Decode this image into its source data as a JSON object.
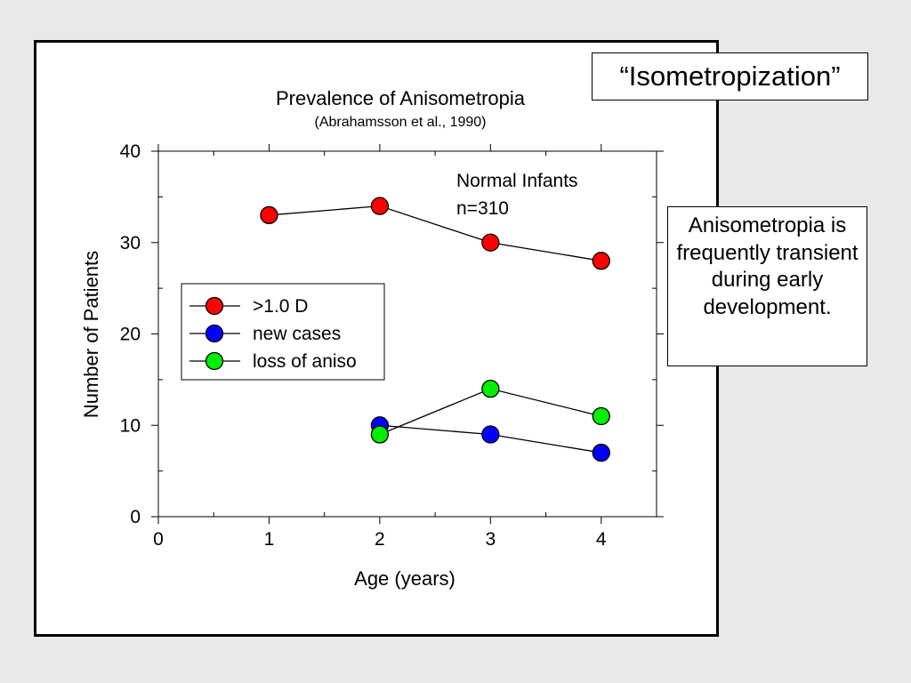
{
  "title_box": {
    "text": "“Isometropization”"
  },
  "note_box": {
    "text": "Anisometropia is frequently transient during early development."
  },
  "chart_data": {
    "type": "line",
    "title": "Prevalence of Anisometropia",
    "subtitle": "(Abrahamsson et al., 1990)",
    "xlabel": "Age (years)",
    "ylabel": "Number of Patients",
    "xlim": [
      0,
      4.5
    ],
    "ylim": [
      0,
      40
    ],
    "xticks": [
      0,
      1,
      2,
      3,
      4
    ],
    "yticks": [
      0,
      10,
      20,
      30,
      40
    ],
    "grid": false,
    "legend_position": "center-left",
    "annotation": {
      "line1": "Normal Infants",
      "line2": "n=310"
    },
    "series": [
      {
        "name": ">1.0 D",
        "color": "#ff0000",
        "x": [
          1,
          2,
          3,
          4
        ],
        "y": [
          33,
          34,
          30,
          28
        ]
      },
      {
        "name": "new cases",
        "color": "#0000ff",
        "x": [
          2,
          3,
          4
        ],
        "y": [
          10,
          9,
          7
        ]
      },
      {
        "name": "loss of aniso",
        "color": "#00ee00",
        "x": [
          2,
          3,
          4
        ],
        "y": [
          9,
          14,
          11
        ]
      }
    ]
  }
}
